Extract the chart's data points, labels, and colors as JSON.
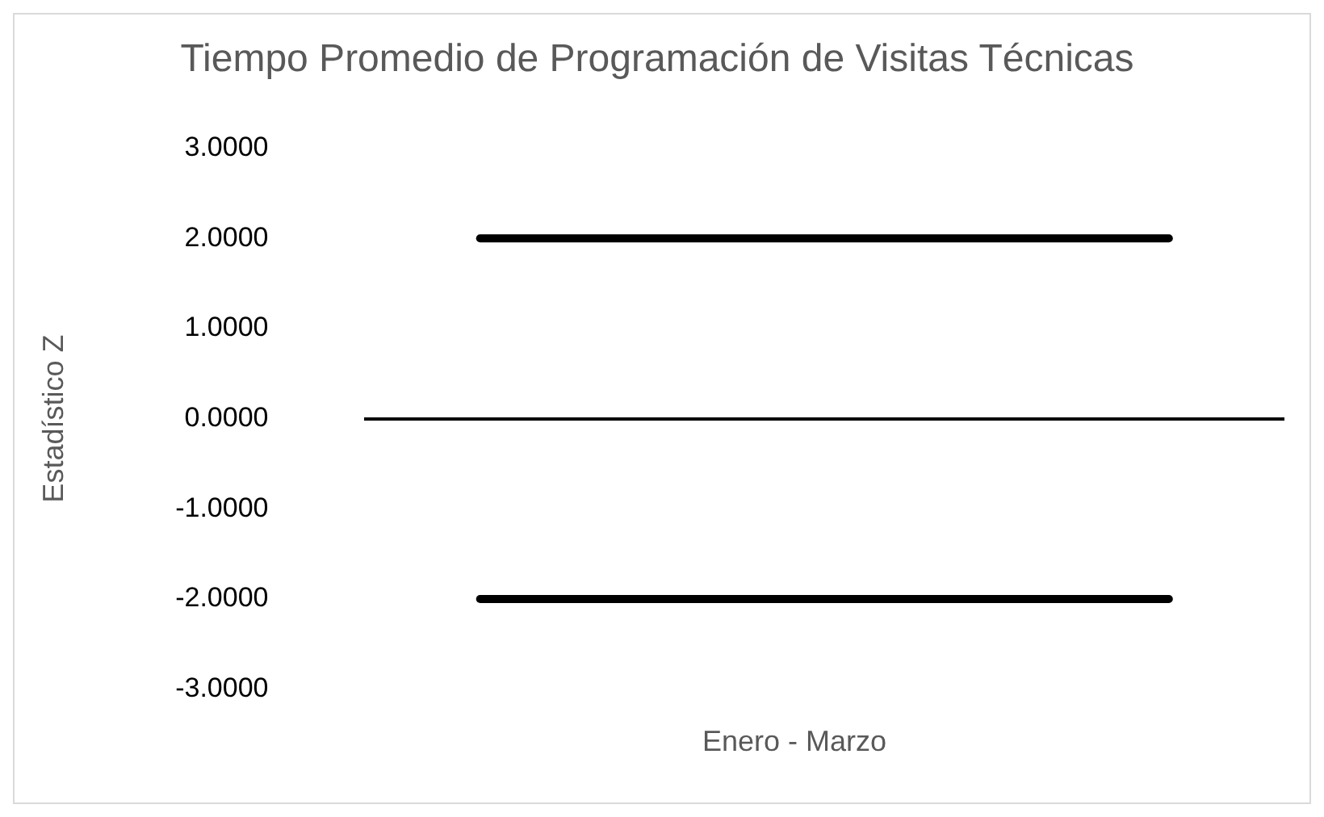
{
  "chart_data": {
    "type": "line",
    "title": "Tiempo Promedio de Programación de Visitas Técnicas",
    "xlabel": "Enero - Marzo",
    "ylabel": "Estadístico Z",
    "categories": [
      null,
      null,
      null,
      null
    ],
    "series": [
      {
        "color": "#000000",
        "values": [
          2,
          2,
          2,
          2
        ]
      },
      {
        "color": "#000000",
        "values": [
          -2,
          -2,
          -2,
          -2
        ]
      }
    ],
    "ylim": [
      -3,
      3
    ],
    "yticks": [
      {
        "value": -3,
        "label": "-3.0000"
      },
      {
        "value": -2,
        "label": "-2.0000"
      },
      {
        "value": -1,
        "label": "-1.0000"
      },
      {
        "value": 0,
        "label": "0.0000"
      },
      {
        "value": 1,
        "label": "1.0000"
      },
      {
        "value": 2,
        "label": "2.0000"
      },
      {
        "value": 3,
        "label": "3.0000"
      }
    ],
    "grid": false,
    "legend": false,
    "marker": "none",
    "line_style": "solid",
    "tick_labels": "y"
  }
}
